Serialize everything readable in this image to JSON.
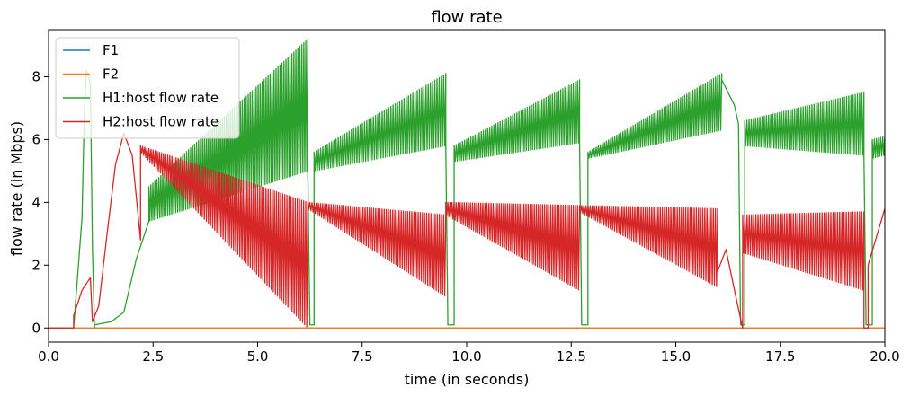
{
  "chart_data": {
    "type": "line",
    "title": "flow rate",
    "xlabel": "time (in seconds)",
    "ylabel": "flow rate (in Mbps)",
    "xlim": [
      0,
      20
    ],
    "ylim": [
      -0.45,
      9.5
    ],
    "x_ticks": [
      0.0,
      2.5,
      5.0,
      7.5,
      10.0,
      12.5,
      15.0,
      17.5,
      20.0
    ],
    "x_tick_labels": [
      "0.0",
      "2.5",
      "5.0",
      "7.5",
      "10.0",
      "12.5",
      "15.0",
      "17.5",
      "20.0"
    ],
    "y_ticks": [
      0,
      2,
      4,
      6,
      8
    ],
    "y_tick_labels": [
      "0",
      "2",
      "4",
      "6",
      "8"
    ],
    "grid": false,
    "legend_position": "top-left",
    "series": [
      {
        "name": "F1",
        "color": "#1f77b4",
        "x": [
          0,
          20
        ],
        "y": [
          0,
          0
        ]
      },
      {
        "name": "F2",
        "color": "#ff7f0e",
        "x": [
          0,
          20
        ],
        "y": [
          0,
          0
        ]
      },
      {
        "name": "H1:host flow rate",
        "color": "#2ca02c",
        "segments": [
          {
            "x": [
              0.0,
              0.6
            ],
            "y": [
              0,
              0
            ]
          },
          {
            "x": [
              0.6,
              0.8,
              0.85,
              0.9,
              1.0,
              1.05,
              1.1
            ],
            "y": [
              0,
              3.5,
              6.5,
              8.2,
              7.8,
              2.5,
              0
            ]
          },
          {
            "x": [
              1.1,
              1.5,
              1.8
            ],
            "y": [
              0.1,
              0.2,
              0.5
            ]
          },
          {
            "x": [
              1.8,
              2.1,
              2.4
            ],
            "y": [
              0.5,
              2.2,
              3.4
            ]
          },
          {
            "x": [
              2.4,
              6.2
            ],
            "lo": [
              3.4,
              5.0
            ],
            "hi": [
              4.5,
              9.2
            ],
            "n": 80
          },
          {
            "x": [
              6.2,
              6.25,
              6.35
            ],
            "y": [
              5.0,
              0.1,
              0.1
            ]
          },
          {
            "x": [
              6.35,
              9.5
            ],
            "lo": [
              5.0,
              5.8
            ],
            "hi": [
              5.6,
              8.1
            ],
            "n": 60
          },
          {
            "x": [
              9.5,
              9.55,
              9.7
            ],
            "y": [
              5.8,
              0.1,
              0.1
            ]
          },
          {
            "x": [
              9.7,
              12.7
            ],
            "lo": [
              5.3,
              5.9
            ],
            "hi": [
              5.8,
              7.9
            ],
            "n": 60
          },
          {
            "x": [
              12.7,
              12.75,
              12.9
            ],
            "y": [
              5.9,
              0.1,
              0.1
            ]
          },
          {
            "x": [
              12.9,
              16.1
            ],
            "lo": [
              5.4,
              6.3
            ],
            "hi": [
              5.6,
              8.1
            ],
            "n": 65
          },
          {
            "x": [
              16.1,
              16.4,
              16.5,
              16.55,
              16.65
            ],
            "y": [
              7.9,
              7.1,
              6.5,
              0.1,
              0.1
            ]
          },
          {
            "x": [
              16.65,
              19.5
            ],
            "lo": [
              5.8,
              5.5
            ],
            "hi": [
              6.6,
              7.5
            ],
            "n": 55
          },
          {
            "x": [
              19.5,
              19.55,
              19.7
            ],
            "y": [
              5.5,
              0.1,
              0.1
            ]
          },
          {
            "x": [
              19.7,
              20.0
            ],
            "lo": [
              5.4,
              5.5
            ],
            "hi": [
              6.0,
              6.1
            ],
            "n": 6
          }
        ]
      },
      {
        "name": "H2:host flow rate",
        "color": "#d62728",
        "segments": [
          {
            "x": [
              0.0,
              0.6
            ],
            "y": [
              0,
              0
            ]
          },
          {
            "x": [
              0.6,
              0.8,
              1.0,
              1.05
            ],
            "y": [
              0.4,
              1.2,
              1.6,
              0.2
            ]
          },
          {
            "x": [
              1.05,
              1.2,
              1.4,
              1.6,
              1.8,
              2.0,
              2.2
            ],
            "y": [
              0.2,
              0.7,
              3.0,
              5.2,
              6.2,
              5.5,
              2.8
            ]
          },
          {
            "x": [
              2.2,
              6.2
            ],
            "lo": [
              5.6,
              0.0
            ],
            "hi": [
              5.8,
              4.0
            ],
            "n": 80
          },
          {
            "x": [
              6.2,
              9.5
            ],
            "lo": [
              3.8,
              1.0
            ],
            "hi": [
              4.0,
              3.6
            ],
            "n": 65
          },
          {
            "x": [
              9.5,
              12.7
            ],
            "lo": [
              3.6,
              1.2
            ],
            "hi": [
              4.0,
              3.9
            ],
            "n": 65
          },
          {
            "x": [
              12.7,
              16.0
            ],
            "lo": [
              3.7,
              1.3
            ],
            "hi": [
              3.9,
              3.8
            ],
            "n": 65
          },
          {
            "x": [
              16.0,
              16.2,
              16.5,
              16.6
            ],
            "y": [
              1.8,
              2.5,
              0.6,
              0.0
            ]
          },
          {
            "x": [
              16.6,
              19.5
            ],
            "lo": [
              2.4,
              1.2
            ],
            "hi": [
              3.6,
              3.7
            ],
            "n": 55
          },
          {
            "x": [
              19.5,
              19.6
            ],
            "y": [
              0.0,
              0.0
            ]
          },
          {
            "x": [
              19.6,
              20.0
            ],
            "y": [
              2.0,
              3.8
            ]
          }
        ]
      }
    ]
  }
}
